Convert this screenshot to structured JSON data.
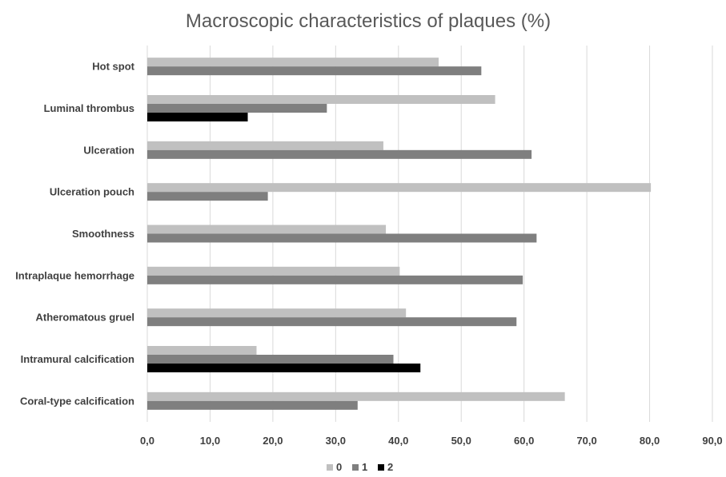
{
  "chart_data": {
    "type": "bar",
    "orientation": "horizontal",
    "title": "Macroscopic characteristics of plaques (%)",
    "xlabel": "",
    "ylabel": "",
    "xlim": [
      0,
      90
    ],
    "x_ticks": [
      "0,0",
      "10,0",
      "20,0",
      "30,0",
      "40,0",
      "50,0",
      "60,0",
      "70,0",
      "80,0",
      "90,0"
    ],
    "grid": "vertical",
    "legend_position": "bottom",
    "categories": [
      "Hot spot",
      "Luminal thrombus",
      "Ulceration",
      "Ulceration pouch",
      "Smoothness",
      "Intraplaque hemorrhage",
      "Atheromatous gruel",
      "Intramural calcification",
      "Coral-type calcification"
    ],
    "series": [
      {
        "name": "0",
        "color": "#c0c0c0",
        "values": [
          46.4,
          55.4,
          37.6,
          80.2,
          38.0,
          40.2,
          41.2,
          17.4,
          66.5
        ]
      },
      {
        "name": "1",
        "color": "#7f7f7f",
        "values": [
          53.2,
          28.6,
          61.2,
          19.2,
          62.0,
          59.8,
          58.8,
          39.2,
          33.5
        ]
      },
      {
        "name": "2",
        "color": "#000000",
        "values": [
          null,
          16.0,
          null,
          null,
          null,
          null,
          null,
          43.5,
          null
        ]
      }
    ]
  }
}
